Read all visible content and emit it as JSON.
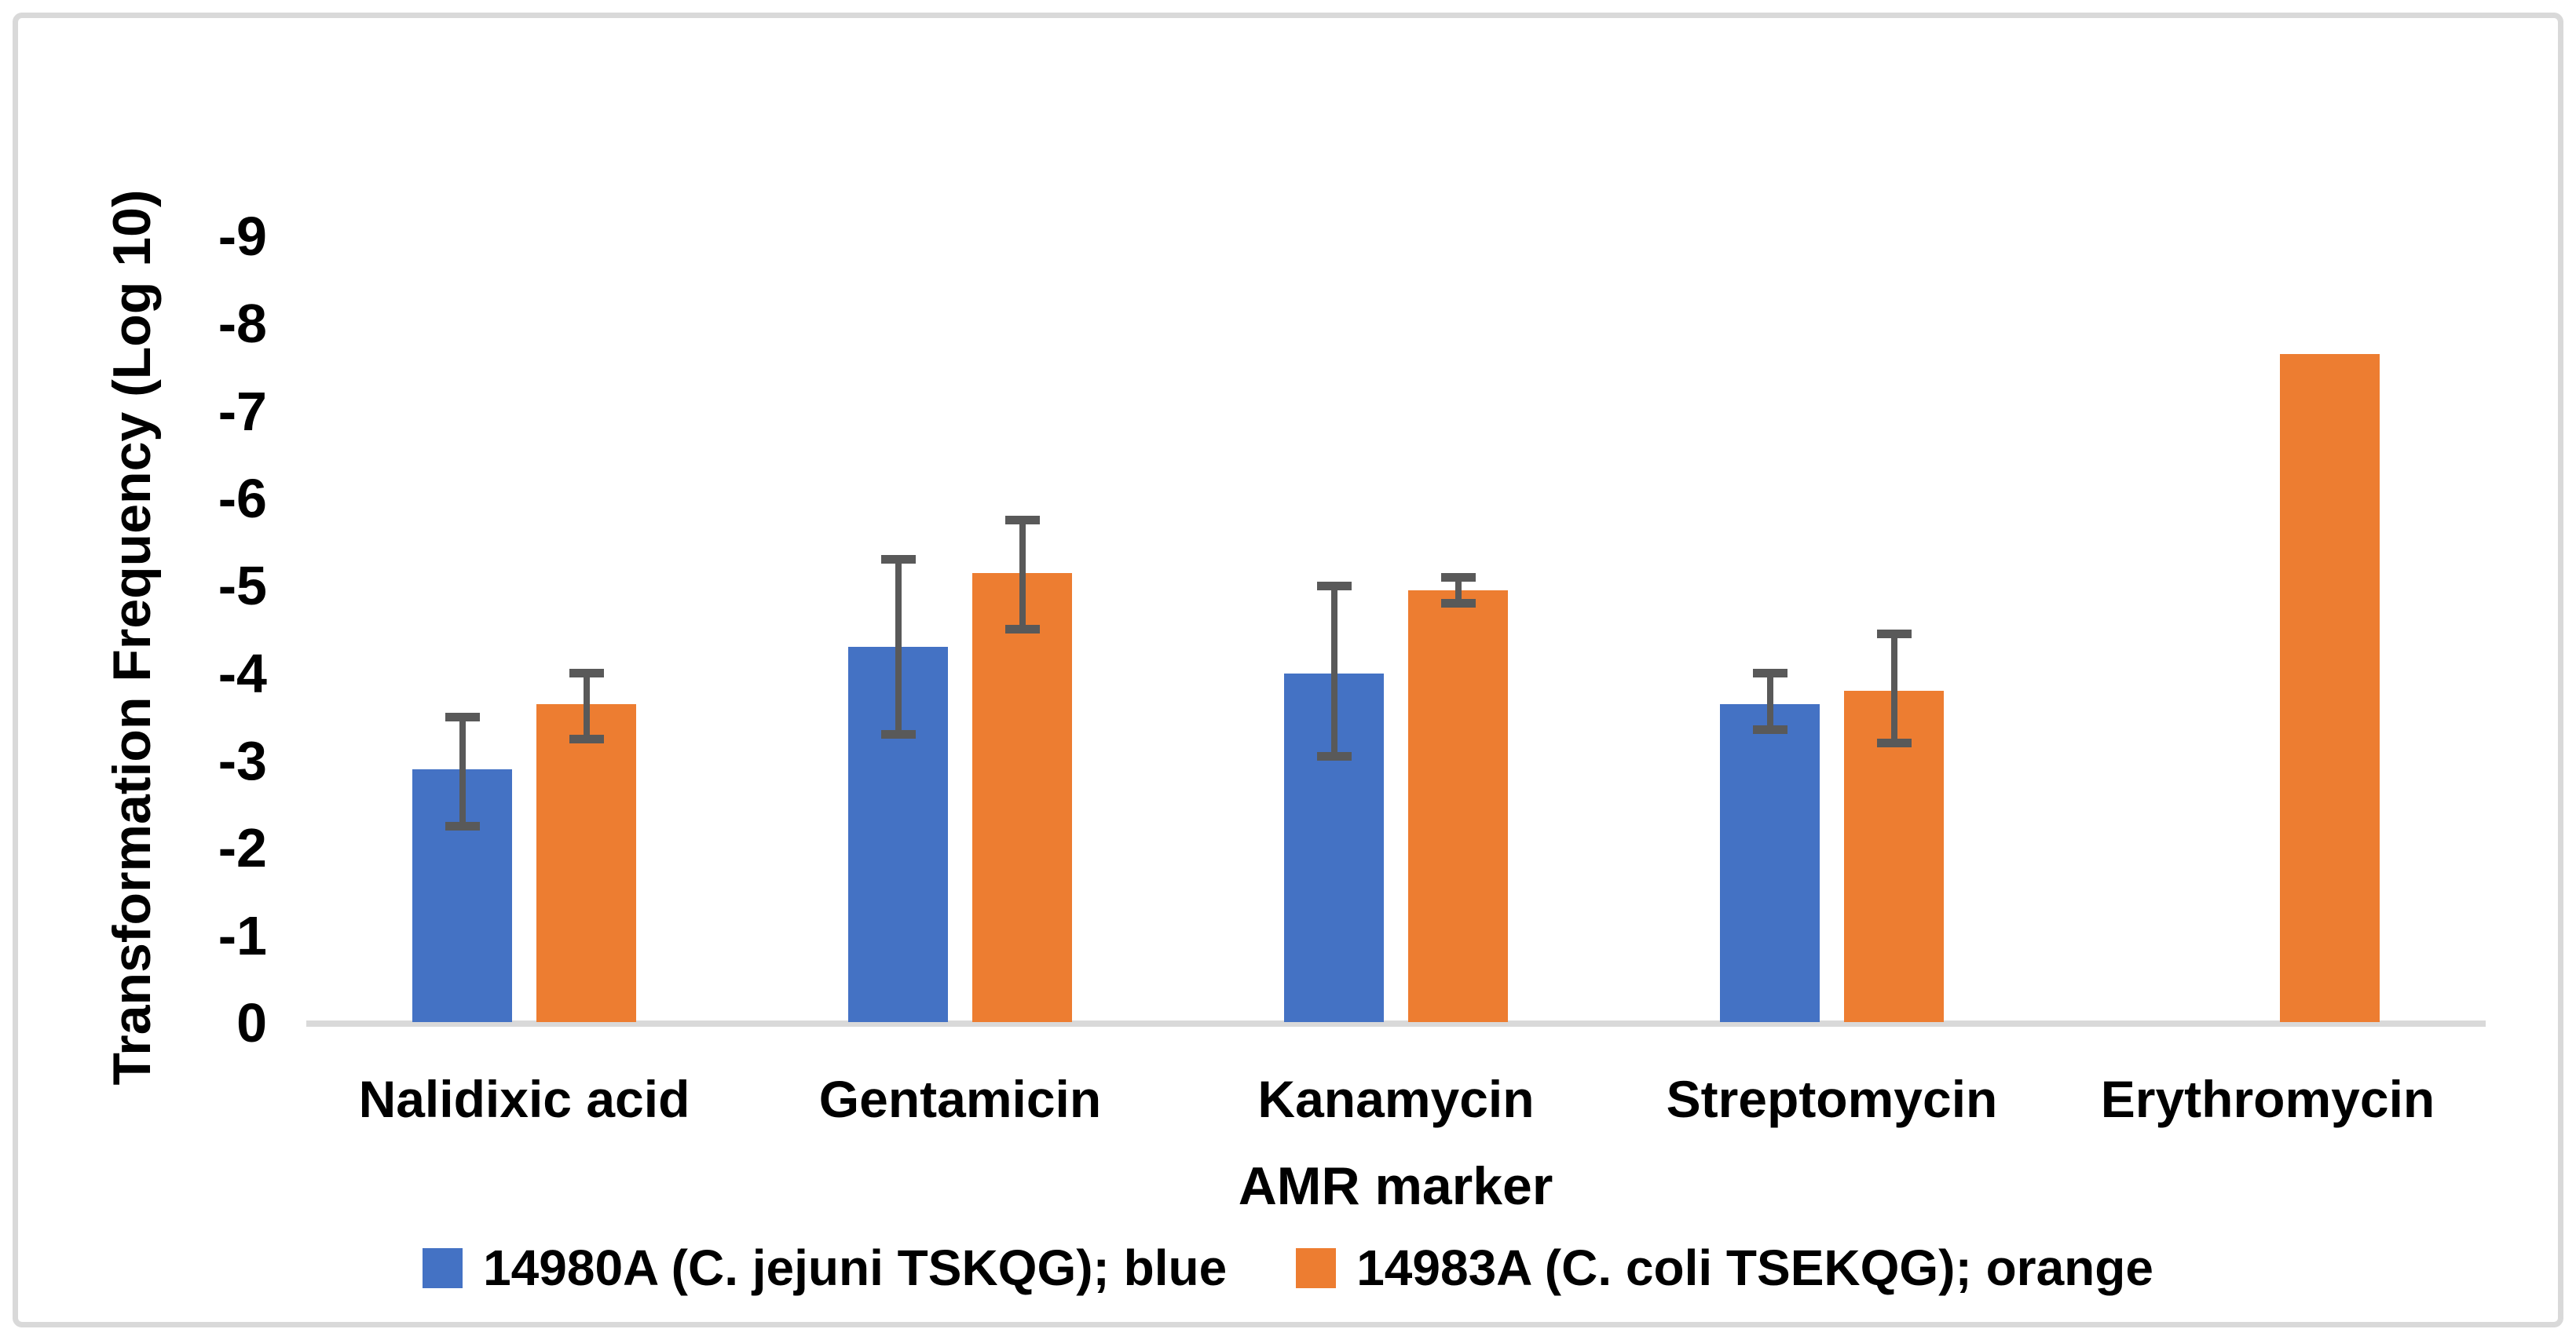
{
  "colors": {
    "series_blue": "#4472C4",
    "series_orange": "#ED7D31",
    "error_bar": "#595959",
    "axis_line": "#D9D9D9",
    "figure_border": "#D9D9D9",
    "text": "#000000",
    "background": "#FFFFFF"
  },
  "chart_data": {
    "type": "bar",
    "title": "",
    "xlabel": "AMR marker",
    "ylabel": "Transformation Frequency (Log 10)",
    "categories": [
      "Nalidixic acid",
      "Gentamicin",
      "Kanamycin",
      "Streptomycin",
      "Erythromycin"
    ],
    "series": [
      {
        "name": "14980A (C. jejuni TSKQG); blue",
        "color": "#4472C4",
        "values": [
          -2.9,
          -4.3,
          -4.0,
          -3.65,
          null
        ],
        "error_ranges": [
          [
            -2.25,
            -3.5
          ],
          [
            -3.3,
            -5.3
          ],
          [
            -3.05,
            -5.0
          ],
          [
            -3.35,
            -4.0
          ],
          null
        ]
      },
      {
        "name": "14983A (C. coli TSEKQG); orange",
        "color": "#ED7D31",
        "values": [
          -3.65,
          -5.15,
          -4.95,
          -3.8,
          -7.65
        ],
        "error_ranges": [
          [
            -3.25,
            -4.0
          ],
          [
            -4.5,
            -5.75
          ],
          [
            -4.8,
            -5.1
          ],
          [
            -3.2,
            -4.45
          ],
          null
        ]
      }
    ],
    "y_ticks": [
      0,
      -1,
      -2,
      -3,
      -4,
      -5,
      -6,
      -7,
      -8,
      -9
    ],
    "ylim": [
      0,
      -9.6
    ],
    "value_axis_direction": "reversed: 0 at baseline, more-negative values extend upward",
    "grid": false,
    "error_bars": true,
    "legend_position": "bottom"
  }
}
